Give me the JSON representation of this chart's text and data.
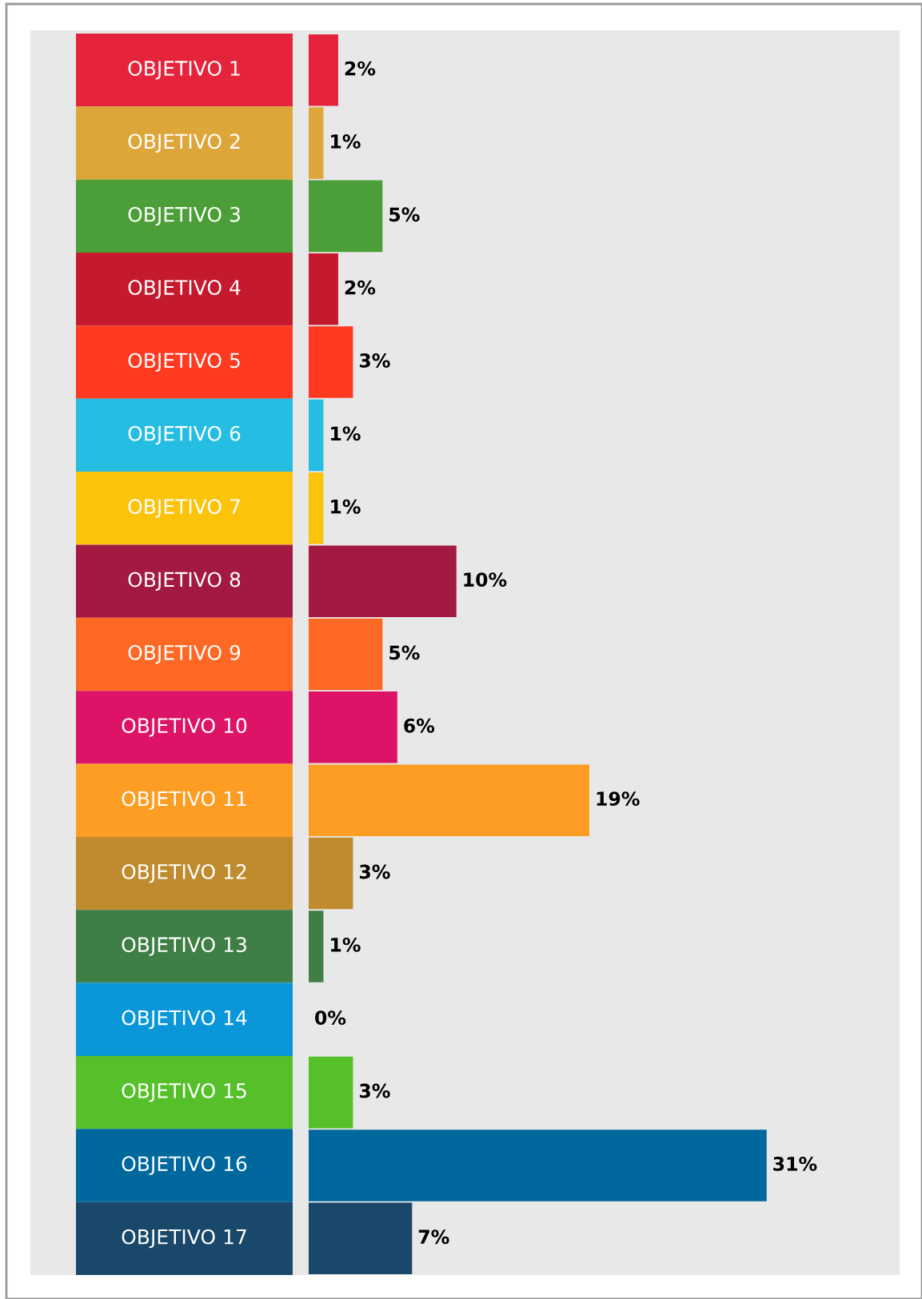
{
  "chart_data": {
    "type": "bar",
    "orientation": "horizontal",
    "categories": [
      "OBJETIVO 1",
      "OBJETIVO 2",
      "OBJETIVO 3",
      "OBJETIVO 4",
      "OBJETIVO 5",
      "OBJETIVO 6",
      "OBJETIVO 7",
      "OBJETIVO 8",
      "OBJETIVO 9",
      "OBJETIVO 10",
      "OBJETIVO 11",
      "OBJETIVO 12",
      "OBJETIVO 13",
      "OBJETIVO 14",
      "OBJETIVO 15",
      "OBJETIVO 16",
      "OBJETIVO 17"
    ],
    "values": [
      2,
      1,
      5,
      2,
      3,
      1,
      1,
      10,
      5,
      6,
      19,
      3,
      1,
      0,
      3,
      31,
      7
    ],
    "value_labels": [
      "2%",
      "1%",
      "5%",
      "2%",
      "3%",
      "1%",
      "1%",
      "10%",
      "5%",
      "6%",
      "19%",
      "3%",
      "1%",
      "0%",
      "3%",
      "31%",
      "7%"
    ],
    "colors": [
      "#e5243b",
      "#dda63a",
      "#4c9f38",
      "#c5192d",
      "#ff3a21",
      "#26bde2",
      "#fcc30b",
      "#a21942",
      "#fd6925",
      "#dd1367",
      "#fd9d24",
      "#bf8b2e",
      "#3f7e44",
      "#0a97d9",
      "#56c02b",
      "#00689d",
      "#19486a"
    ],
    "legend": false
  }
}
